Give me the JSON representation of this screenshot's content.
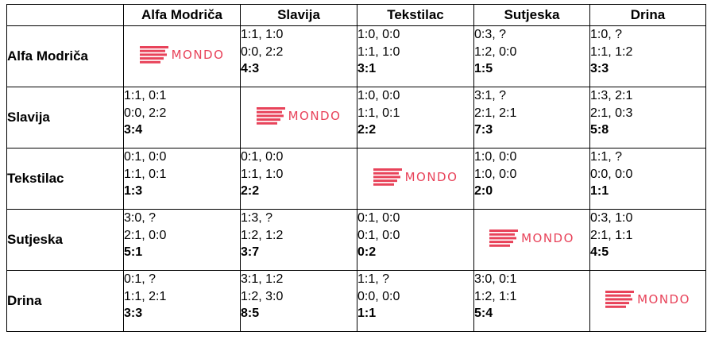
{
  "columns": [
    "Alfa Modriča",
    "Slavija",
    "Tekstilac",
    "Sutjeska",
    "Drina"
  ],
  "brand": {
    "name": "MONDO",
    "color": "#e8435a"
  },
  "rows": [
    {
      "team": "Alfa Modriča",
      "cells": [
        null,
        {
          "line1": "1:1, 1:0",
          "line2": "0:0, 2:2",
          "result": "4:3"
        },
        {
          "line1": "1:0, 0:0",
          "line2": "1:1, 1:0",
          "result": "3:1"
        },
        {
          "line1": "0:3, ?",
          "line2": "1:2, 0:0",
          "result": "1:5"
        },
        {
          "line1": "1:0, ?",
          "line2": "1:1, 1:2",
          "result": "3:3"
        }
      ]
    },
    {
      "team": "Slavija",
      "cells": [
        {
          "line1": "1:1, 0:1",
          "line2": "0:0, 2:2",
          "result": "3:4"
        },
        null,
        {
          "line1": "1:0, 0:0",
          "line2": "1:1, 0:1",
          "result": "2:2"
        },
        {
          "line1": "3:1, ?",
          "line2": "2:1, 2:1",
          "result": "7:3"
        },
        {
          "line1": "1:3, 2:1",
          "line2": "2:1, 0:3",
          "result": "5:8"
        }
      ]
    },
    {
      "team": "Tekstilac",
      "cells": [
        {
          "line1": "0:1, 0:0",
          "line2": "1:1, 0:1",
          "result": "1:3"
        },
        {
          "line1": "0:1, 0:0",
          "line2": "1:1, 1:0",
          "result": "2:2"
        },
        null,
        {
          "line1": "1:0, 0:0",
          "line2": "1:0, 0:0",
          "result": "2:0"
        },
        {
          "line1": "1:1, ?",
          "line2": "0:0, 0:0",
          "result": "1:1"
        }
      ]
    },
    {
      "team": "Sutjeska",
      "cells": [
        {
          "line1": "3:0, ?",
          "line2": "2:1, 0:0",
          "result": "5:1"
        },
        {
          "line1": "1:3, ?",
          "line2": "1:2, 1:2",
          "result": "3:7"
        },
        {
          "line1": "0:1, 0:0",
          "line2": "0:1, 0:0",
          "result": "0:2"
        },
        null,
        {
          "line1": "0:3, 1:0",
          "line2": "2:1, 1:1",
          "result": "4:5"
        }
      ]
    },
    {
      "team": "Drina",
      "cells": [
        {
          "line1": "0:1, ?",
          "line2": "1:1, 2:1",
          "result": "3:3"
        },
        {
          "line1": "3:1, 1:2",
          "line2": "1:2, 3:0",
          "result": "8:5"
        },
        {
          "line1": "1:1, ?",
          "line2": "0:0, 0:0",
          "result": "1:1"
        },
        {
          "line1": "3:0, 0:1",
          "line2": "1:2, 1:1",
          "result": "5:4"
        },
        null
      ]
    }
  ]
}
